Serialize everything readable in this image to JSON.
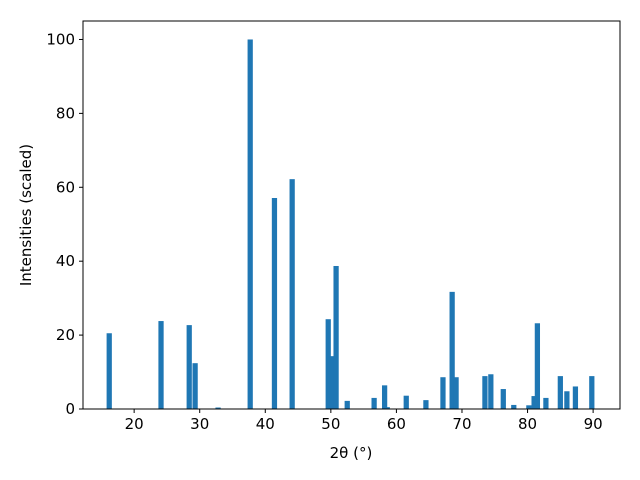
{
  "chart_data": {
    "type": "bar",
    "xlabel": "2θ (°)",
    "ylabel": "Intensities (scaled)",
    "color": "#1f77b4",
    "x": [
      16.2,
      24.1,
      28.4,
      29.3,
      32.8,
      37.7,
      41.4,
      44.1,
      49.6,
      50.2,
      50.8,
      52.5,
      56.6,
      58.2,
      58.6,
      61.5,
      64.5,
      67.1,
      68.5,
      69.1,
      73.5,
      74.4,
      76.3,
      77.9,
      80.2,
      81.0,
      81.5,
      82.8,
      85.0,
      86.0,
      87.3,
      89.8
    ],
    "values": [
      20.5,
      23.8,
      22.7,
      12.4,
      0.4,
      100,
      57.1,
      62.2,
      24.3,
      14.3,
      38.7,
      2.2,
      3,
      6.4,
      0.5,
      3.6,
      2.4,
      8.6,
      31.7,
      8.6,
      8.9,
      9.4,
      5.4,
      1.1,
      1.0,
      3.5,
      23.2,
      3,
      8.9,
      4.8,
      6.1,
      8.9
    ],
    "xlim": [
      12.2,
      94.1
    ],
    "xticks": [
      20,
      30,
      40,
      50,
      60,
      70,
      80,
      90
    ],
    "ylim": [
      0,
      105
    ],
    "yticks": [
      0,
      20,
      40,
      60,
      80,
      100
    ]
  }
}
